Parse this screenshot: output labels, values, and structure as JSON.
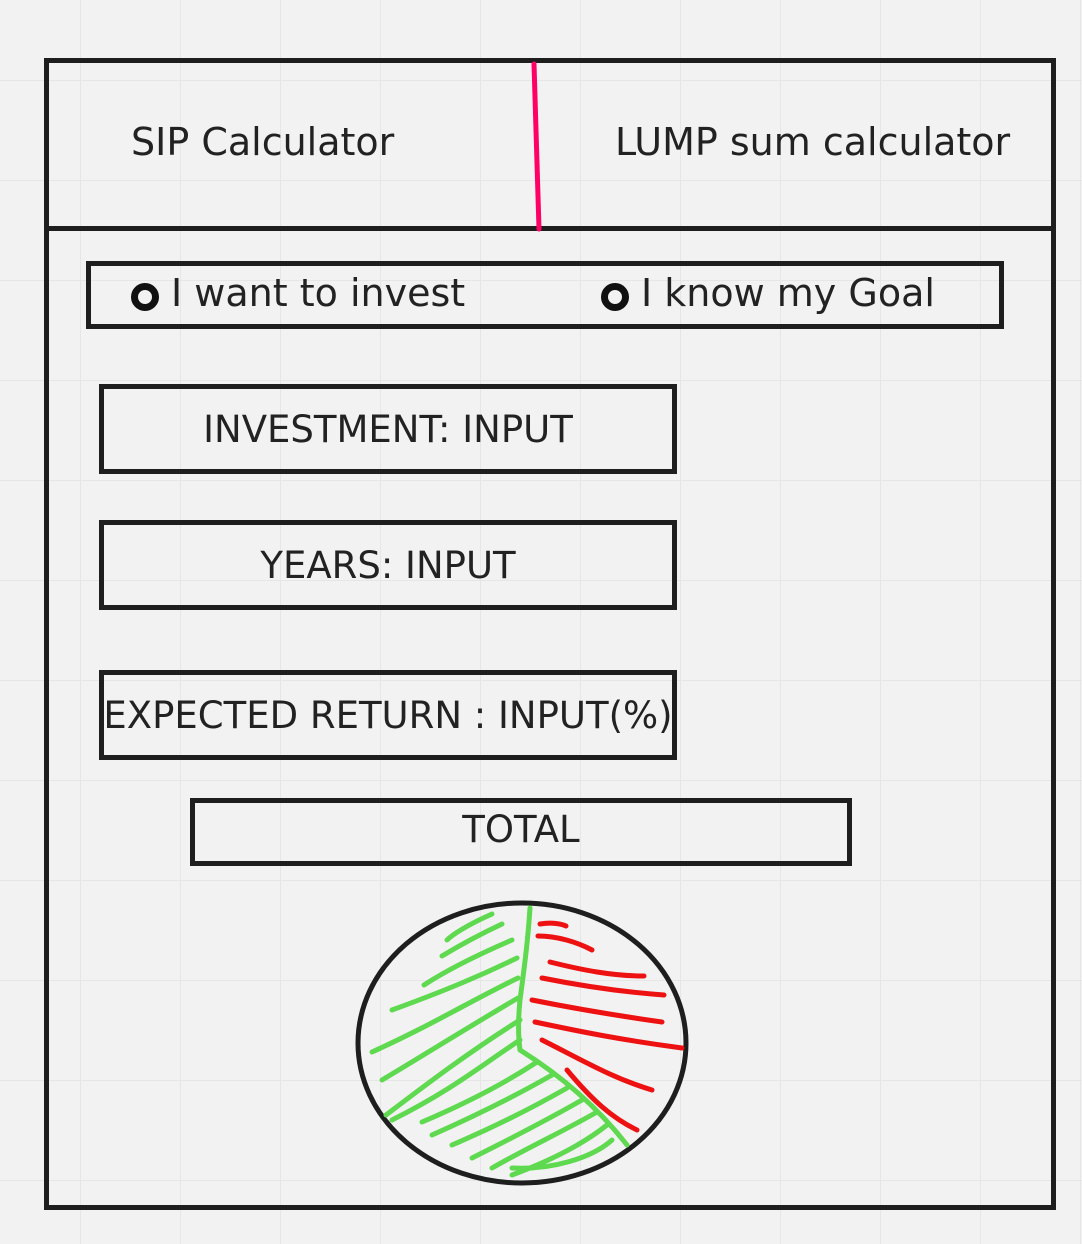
{
  "tabs": [
    {
      "label": "SIP Calculator"
    },
    {
      "label": "LUMP sum calculator"
    }
  ],
  "mode_options": [
    {
      "label": "I want to invest"
    },
    {
      "label": "I know my Goal"
    }
  ],
  "fields": {
    "investment": "INVESTMENT: INPUT",
    "years": "YEARS: INPUT",
    "expected_return": "EXPECTED RETURN : INPUT(%)"
  },
  "total_label": "TOTAL",
  "colors": {
    "border": "#1e1e1e",
    "tab_divider": "#ff0066",
    "pie_invested": "#5fd94f",
    "pie_returns": "#ee1111"
  }
}
